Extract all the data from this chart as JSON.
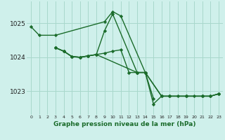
{
  "bg_color": "#cff0eb",
  "grid_color": "#a8d8cc",
  "line_color": "#1a6b2a",
  "series": [
    {
      "x": [
        0,
        1,
        3,
        9,
        10,
        11,
        14,
        15
      ],
      "y": [
        1024.9,
        1024.65,
        1024.65,
        1025.05,
        1025.35,
        1025.22,
        1023.55,
        1022.78
      ]
    },
    {
      "x": [
        3,
        4,
        5,
        6,
        7,
        8,
        13,
        14,
        16,
        17,
        19,
        21,
        22,
        23
      ],
      "y": [
        1024.28,
        1024.18,
        1024.02,
        1024.0,
        1024.04,
        1024.08,
        1023.55,
        1023.55,
        1022.85,
        1022.85,
        1022.85,
        1022.85,
        1022.85,
        1022.92
      ]
    },
    {
      "x": [
        3,
        4,
        5,
        6,
        7,
        8,
        9,
        10,
        13,
        14,
        15,
        16,
        17,
        19,
        21,
        22,
        23
      ],
      "y": [
        1024.28,
        1024.18,
        1024.02,
        1024.0,
        1024.04,
        1024.08,
        1024.78,
        1025.28,
        1023.55,
        1023.55,
        1022.62,
        1022.85,
        1022.85,
        1022.85,
        1022.85,
        1022.85,
        1022.92
      ]
    },
    {
      "x": [
        3,
        4,
        5,
        6,
        7,
        8,
        9,
        10,
        11,
        12,
        13,
        14,
        16,
        17,
        18,
        19,
        20,
        21,
        22,
        23
      ],
      "y": [
        1024.28,
        1024.18,
        1024.02,
        1024.0,
        1024.04,
        1024.08,
        1024.12,
        1024.18,
        1024.22,
        1023.55,
        1023.55,
        1023.55,
        1022.85,
        1022.85,
        1022.85,
        1022.85,
        1022.85,
        1022.85,
        1022.85,
        1022.92
      ]
    }
  ],
  "ylim": [
    1022.3,
    1025.65
  ],
  "yticks": [
    1023,
    1024,
    1025
  ],
  "xticks": [
    0,
    1,
    2,
    3,
    4,
    5,
    6,
    7,
    8,
    9,
    10,
    11,
    12,
    13,
    14,
    15,
    16,
    17,
    18,
    19,
    20,
    21,
    22,
    23
  ],
  "xlabel": "Graphe pression niveau de la mer (hPa)",
  "marker": "D",
  "markersize": 2.2,
  "linewidth": 1.0
}
